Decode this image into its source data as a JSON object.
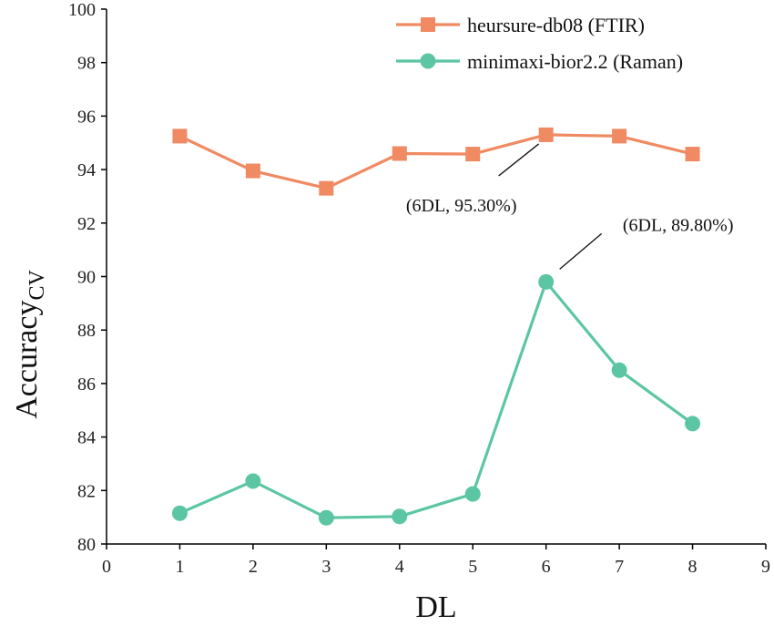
{
  "chart_data": {
    "type": "line",
    "title": "",
    "xlabel": "DL",
    "ylabel_main": "Accuracy",
    "ylabel_sub": "CV",
    "xlim": [
      0,
      9
    ],
    "ylim": [
      80,
      100
    ],
    "xticks": [
      0,
      1,
      2,
      3,
      4,
      5,
      6,
      7,
      8,
      9
    ],
    "yticks": [
      80,
      82,
      84,
      86,
      88,
      90,
      92,
      94,
      96,
      98,
      100
    ],
    "grid": false,
    "legend_position": "top-right",
    "x": [
      1,
      2,
      3,
      4,
      5,
      6,
      7,
      8
    ],
    "series": [
      {
        "name": "heursure-db08 (FTIR)",
        "marker": "square",
        "color": "#F08A62",
        "values": [
          95.25,
          93.95,
          93.3,
          94.6,
          94.58,
          95.3,
          95.25,
          94.58
        ]
      },
      {
        "name": "minimaxi-bior2.2 (Raman)",
        "marker": "circle",
        "color": "#5CC6A4",
        "values": [
          81.15,
          82.35,
          80.98,
          81.03,
          81.87,
          89.8,
          86.5,
          84.5
        ]
      }
    ],
    "annotations": [
      {
        "text": "(6DL, 95.30%)",
        "series": 0,
        "x": 6,
        "y": 95.3
      },
      {
        "text": "(6DL, 89.80%)",
        "series": 1,
        "x": 6,
        "y": 89.8
      }
    ]
  }
}
